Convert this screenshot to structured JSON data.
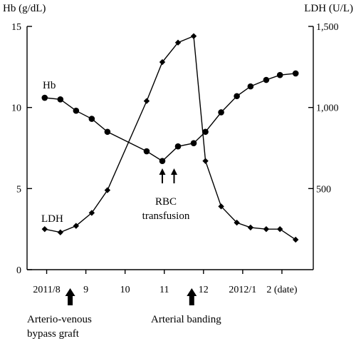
{
  "chart_data": {
    "type": "line",
    "x_ticks": [
      "2011/8",
      "9",
      "10",
      "11",
      "12",
      "2012/1",
      "2 (date)"
    ],
    "left_axis": {
      "title": "Hb (g/dL)",
      "range": [
        0,
        15
      ],
      "ticks": [
        "0",
        "5",
        "10",
        "15"
      ],
      "tick_values": [
        0,
        5,
        10,
        15
      ]
    },
    "right_axis": {
      "title": "LDH (U/L)",
      "range": [
        0,
        1500
      ],
      "ticks": [
        "500",
        "1,000",
        "1,500"
      ],
      "tick_values": [
        500,
        1000,
        1500
      ]
    },
    "series": [
      {
        "name": "Hb",
        "axis": "left",
        "marker": "circle",
        "points": [
          {
            "x": 7.95,
            "y": 10.6
          },
          {
            "x": 8.35,
            "y": 10.5
          },
          {
            "x": 8.75,
            "y": 9.8
          },
          {
            "x": 9.15,
            "y": 9.3
          },
          {
            "x": 9.55,
            "y": 8.5
          },
          {
            "x": 10.55,
            "y": 7.3
          },
          {
            "x": 10.95,
            "y": 6.7
          },
          {
            "x": 11.35,
            "y": 7.6
          },
          {
            "x": 11.75,
            "y": 7.8
          },
          {
            "x": 12.05,
            "y": 8.5
          },
          {
            "x": 12.45,
            "y": 9.7
          },
          {
            "x": 12.85,
            "y": 10.7
          },
          {
            "x": 13.2,
            "y": 11.3
          },
          {
            "x": 13.6,
            "y": 11.7
          },
          {
            "x": 13.95,
            "y": 12.0
          },
          {
            "x": 14.35,
            "y": 12.1
          }
        ]
      },
      {
        "name": "LDH",
        "axis": "right",
        "marker": "diamond",
        "points": [
          {
            "x": 7.95,
            "y": 250
          },
          {
            "x": 8.35,
            "y": 230
          },
          {
            "x": 8.75,
            "y": 270
          },
          {
            "x": 9.15,
            "y": 350
          },
          {
            "x": 9.55,
            "y": 490
          },
          {
            "x": 10.55,
            "y": 1040
          },
          {
            "x": 10.95,
            "y": 1280
          },
          {
            "x": 11.35,
            "y": 1400
          },
          {
            "x": 11.75,
            "y": 1440
          },
          {
            "x": 12.05,
            "y": 670
          },
          {
            "x": 12.45,
            "y": 390
          },
          {
            "x": 12.85,
            "y": 290
          },
          {
            "x": 13.2,
            "y": 260
          },
          {
            "x": 13.6,
            "y": 250
          },
          {
            "x": 13.95,
            "y": 250
          },
          {
            "x": 14.35,
            "y": 185
          }
        ]
      }
    ],
    "annotations": [
      {
        "id": "rbc",
        "lines": [
          "RBC",
          "transfusion"
        ],
        "arrow_x": [
          10.95,
          11.25
        ]
      },
      {
        "id": "av",
        "lines": [
          "Arterio-venous",
          "bypass graft"
        ],
        "arrow_x": [
          8.6
        ]
      },
      {
        "id": "band",
        "lines": [
          "Arterial banding"
        ],
        "arrow_x": [
          11.7
        ]
      }
    ]
  }
}
